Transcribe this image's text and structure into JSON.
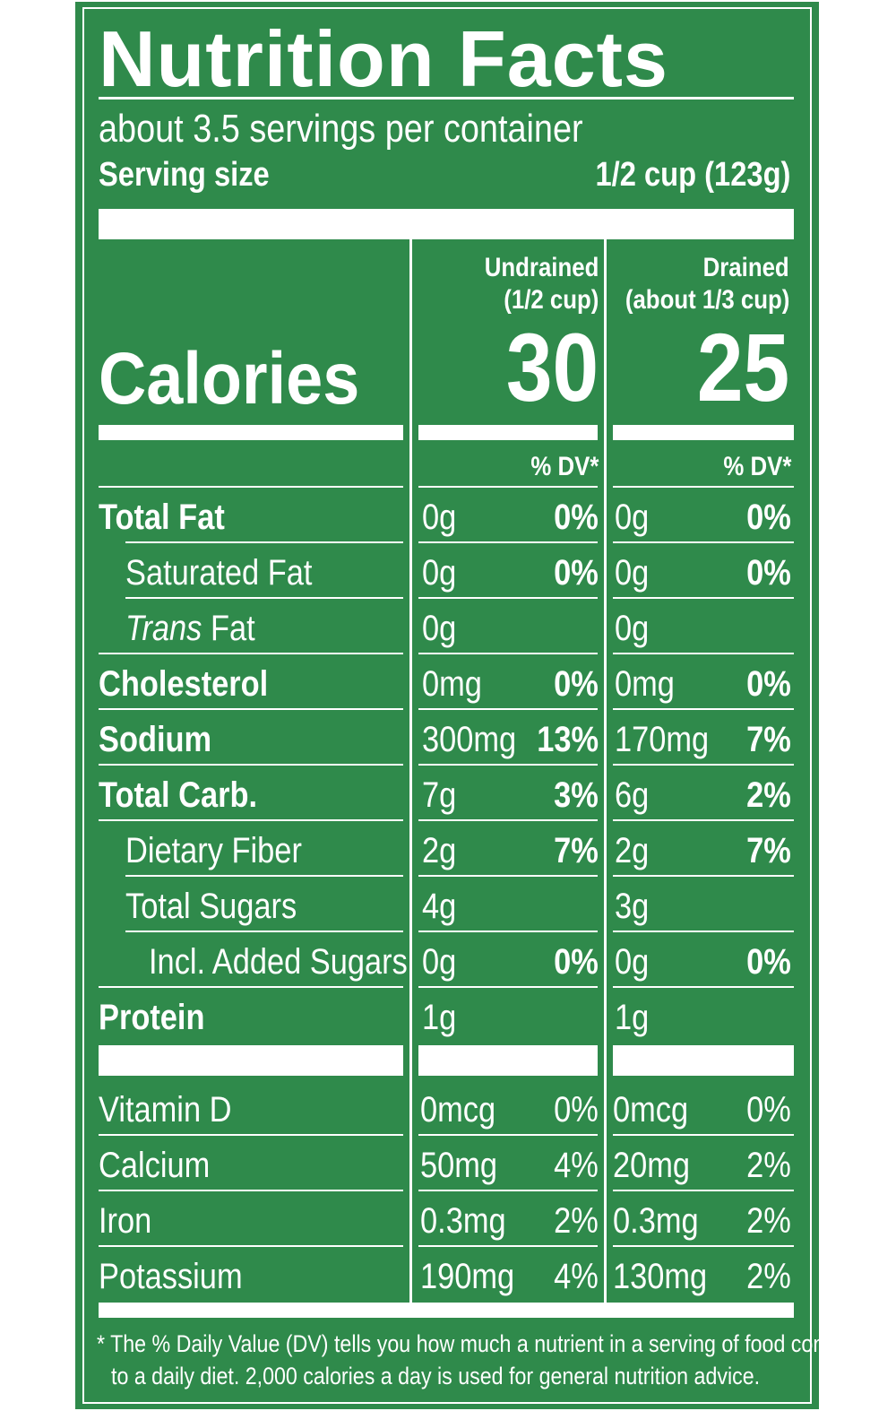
{
  "header": {
    "title": "Nutrition Facts",
    "servings": "about 3.5 servings per container",
    "serving_size_label": "Serving size",
    "serving_size_value": "1/2 cup (123g)"
  },
  "columns": {
    "col1_line1": "Undrained",
    "col1_line2": "(1/2 cup)",
    "col2_line1": "Drained",
    "col2_line2": "(about 1/3 cup)"
  },
  "calories": {
    "label": "Calories",
    "col1": "30",
    "col2": "25"
  },
  "dv_header": {
    "col1": "% DV*",
    "col2": "% DV*"
  },
  "nutrients": [
    {
      "label": "Total Fat",
      "a1": "0g",
      "p1": "0%",
      "a2": "0g",
      "p2": "0%"
    },
    {
      "label": "Saturated Fat",
      "a1": "0g",
      "p1": "0%",
      "a2": "0g",
      "p2": "0%"
    },
    {
      "label_italic": "Trans",
      "label_rest": " Fat",
      "a1": "0g",
      "a2": "0g"
    },
    {
      "label": "Cholesterol",
      "a1": "0mg",
      "p1": "0%",
      "a2": "0mg",
      "p2": "0%"
    },
    {
      "label": "Sodium",
      "a1": "300mg",
      "p1": "13%",
      "a2": "170mg",
      "p2": "7%"
    },
    {
      "label": "Total Carb.",
      "a1": "7g",
      "p1": "3%",
      "a2": "6g",
      "p2": "2%"
    },
    {
      "label": "Dietary Fiber",
      "a1": "2g",
      "p1": "7%",
      "a2": "2g",
      "p2": "7%"
    },
    {
      "label": "Total Sugars",
      "a1": "4g",
      "a2": "3g"
    },
    {
      "label": "Incl. Added Sugars",
      "a1": "0g",
      "p1": "0%",
      "a2": "0g",
      "p2": "0%"
    },
    {
      "label": "Protein",
      "a1": "1g",
      "a2": "1g"
    }
  ],
  "vitamins": [
    {
      "label": "Vitamin D",
      "a1": "0mcg",
      "p1": "0%",
      "a2": "0mcg",
      "p2": "0%"
    },
    {
      "label": "Calcium",
      "a1": "50mg",
      "p1": "4%",
      "a2": "20mg",
      "p2": "2%"
    },
    {
      "label": "Iron",
      "a1": "0.3mg",
      "p1": "2%",
      "a2": "0.3mg",
      "p2": "2%"
    },
    {
      "label": "Potassium",
      "a1": "190mg",
      "p1": "4%",
      "a2": "130mg",
      "p2": "2%"
    }
  ],
  "footnote": {
    "line1": "* The % Daily Value (DV) tells you how much a nutrient in a serving of food contributes",
    "line2": "to a daily diet. 2,000 calories a day is used for general nutrition advice."
  }
}
